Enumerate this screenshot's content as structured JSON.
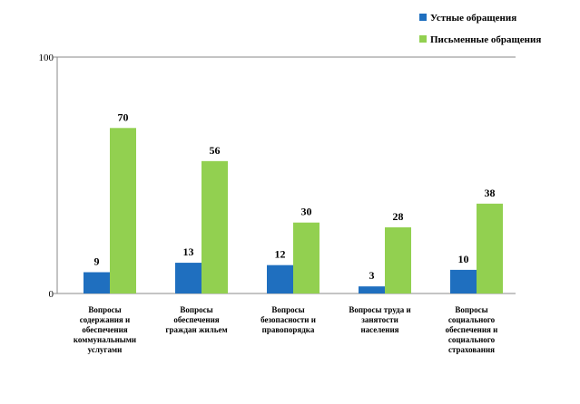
{
  "chart_data": {
    "type": "bar",
    "title": "",
    "xlabel": "",
    "ylabel": "",
    "ylim": [
      0,
      100
    ],
    "yticks": [
      0,
      100
    ],
    "grid": false,
    "legend_position": "top-right",
    "categories": [
      [
        "Вопросы",
        "содержания и",
        "обеспечения",
        "коммунальными",
        "услугами"
      ],
      [
        "Вопросы",
        "обеспечения",
        "граждан жильем"
      ],
      [
        "Вопросы",
        "безопасности и",
        "правопорядка"
      ],
      [
        "Вопросы труда и",
        "занятости",
        "населения"
      ],
      [
        "Вопросы",
        "социального",
        "обеспечения и",
        "социального",
        "страхования"
      ]
    ],
    "series": [
      {
        "name": "Устные обращения",
        "color": "#1f6fbf",
        "values": [
          9,
          13,
          12,
          3,
          10
        ]
      },
      {
        "name": "Письменные обращения",
        "color": "#92d050",
        "values": [
          70,
          56,
          30,
          28,
          38
        ]
      }
    ]
  }
}
